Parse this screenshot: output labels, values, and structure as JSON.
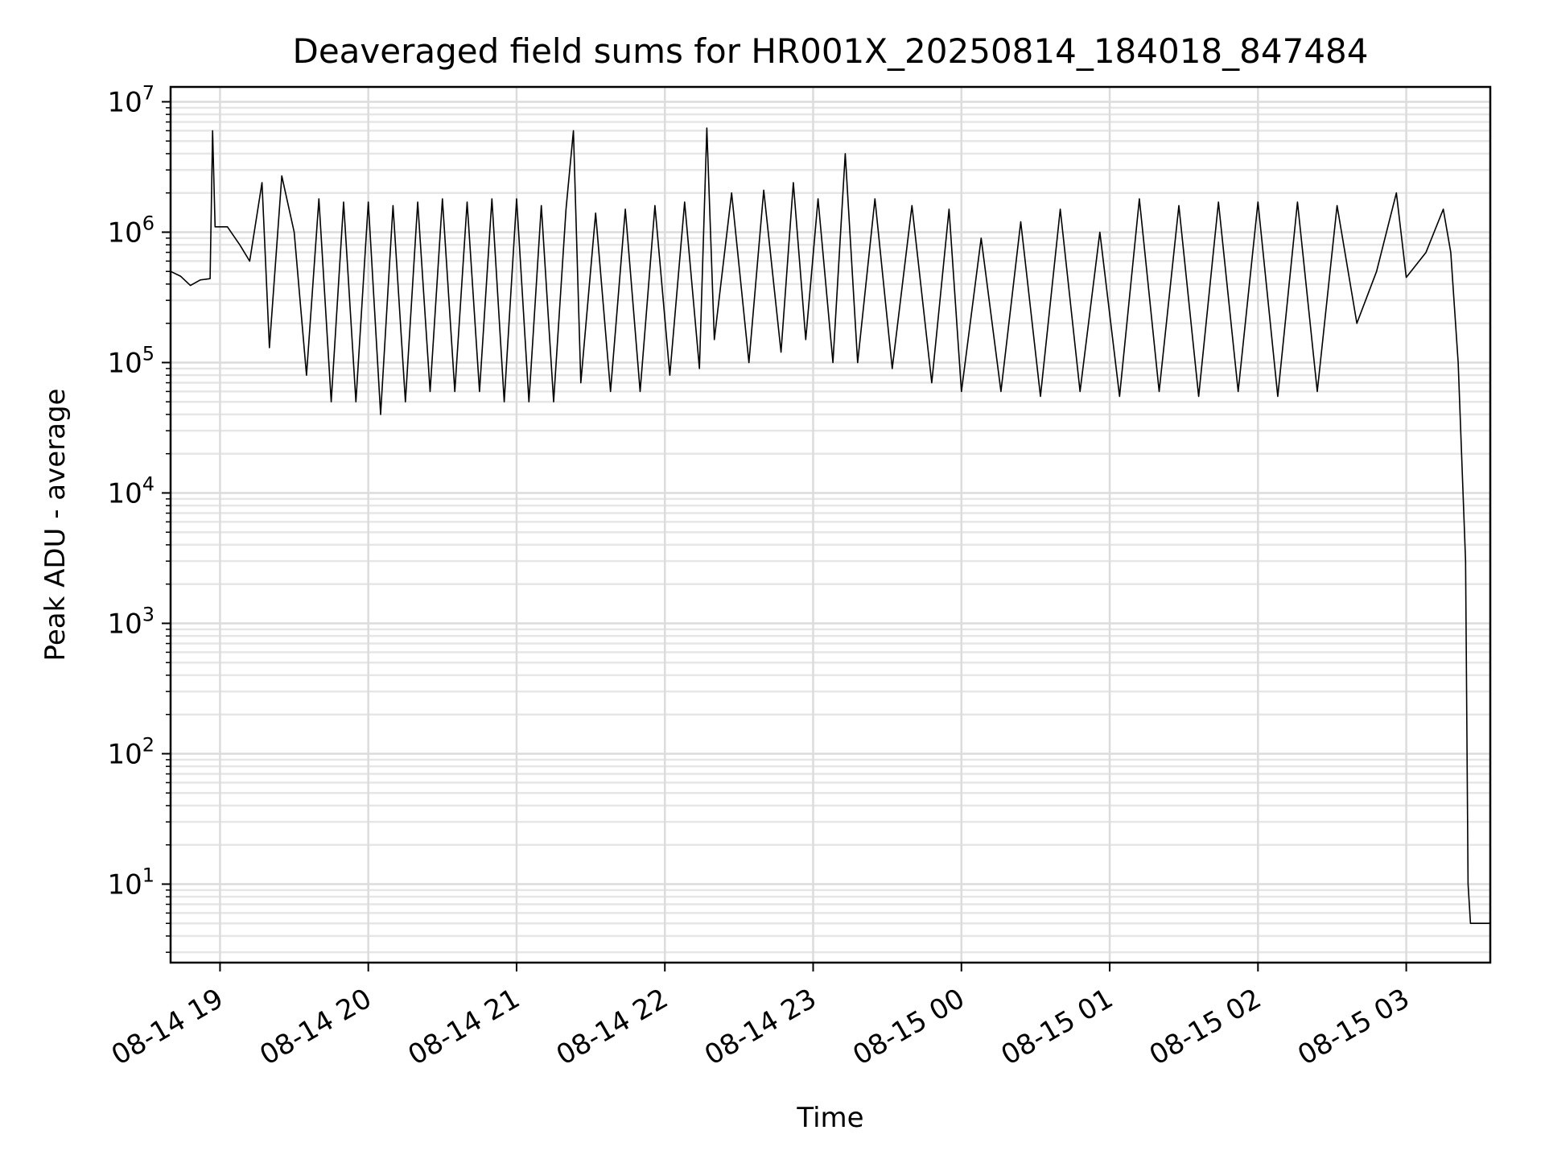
{
  "chart_data": {
    "type": "line",
    "title": "Deaveraged field sums for HR001X_20250814_184018_847484",
    "xlabel": "Time",
    "ylabel": "Peak ADU - average",
    "y_scale": "log",
    "ylim": [
      2.5,
      13000000
    ],
    "xlim": [
      "2025-08-14 18:40",
      "2025-08-15 03:34"
    ],
    "grid": true,
    "legend": "none",
    "line_color": "#000000",
    "x_ticks": [
      {
        "t": "2025-08-14 19:00",
        "label": "08-14 19"
      },
      {
        "t": "2025-08-14 20:00",
        "label": "08-14 20"
      },
      {
        "t": "2025-08-14 21:00",
        "label": "08-14 21"
      },
      {
        "t": "2025-08-14 22:00",
        "label": "08-14 22"
      },
      {
        "t": "2025-08-14 23:00",
        "label": "08-14 23"
      },
      {
        "t": "2025-08-15 00:00",
        "label": "08-15 00"
      },
      {
        "t": "2025-08-15 01:00",
        "label": "08-15 01"
      },
      {
        "t": "2025-08-15 02:00",
        "label": "08-15 02"
      },
      {
        "t": "2025-08-15 03:00",
        "label": "08-15 03"
      }
    ],
    "y_ticks": [
      {
        "value": 10,
        "base": "10",
        "exp": "1"
      },
      {
        "value": 100,
        "base": "10",
        "exp": "2"
      },
      {
        "value": 1000,
        "base": "10",
        "exp": "3"
      },
      {
        "value": 10000,
        "base": "10",
        "exp": "4"
      },
      {
        "value": 100000,
        "base": "10",
        "exp": "5"
      },
      {
        "value": 1000000,
        "base": "10",
        "exp": "6"
      },
      {
        "value": 10000000,
        "base": "10",
        "exp": "7"
      }
    ],
    "series": [
      {
        "points": [
          [
            "2025-08-14 18:40",
            500000
          ],
          [
            "2025-08-14 18:44",
            460000
          ],
          [
            "2025-08-14 18:48",
            390000
          ],
          [
            "2025-08-14 18:52",
            430000
          ],
          [
            "2025-08-14 18:56",
            440000
          ],
          [
            "2025-08-14 18:57",
            6000000
          ],
          [
            "2025-08-14 18:58",
            1100000
          ],
          [
            "2025-08-14 19:03",
            1100000
          ],
          [
            "2025-08-14 19:08",
            800000
          ],
          [
            "2025-08-14 19:12",
            600000
          ],
          [
            "2025-08-14 19:17",
            2400000
          ],
          [
            "2025-08-14 19:20",
            130000
          ],
          [
            "2025-08-14 19:25",
            2700000
          ],
          [
            "2025-08-14 19:30",
            1000000
          ],
          [
            "2025-08-14 19:35",
            80000
          ],
          [
            "2025-08-14 19:40",
            1800000
          ],
          [
            "2025-08-14 19:45",
            50000
          ],
          [
            "2025-08-14 19:50",
            1700000
          ],
          [
            "2025-08-14 19:55",
            50000
          ],
          [
            "2025-08-14 20:00",
            1700000
          ],
          [
            "2025-08-14 20:05",
            40000
          ],
          [
            "2025-08-14 20:10",
            1600000
          ],
          [
            "2025-08-14 20:15",
            50000
          ],
          [
            "2025-08-14 20:20",
            1700000
          ],
          [
            "2025-08-14 20:25",
            60000
          ],
          [
            "2025-08-14 20:30",
            1800000
          ],
          [
            "2025-08-14 20:35",
            60000
          ],
          [
            "2025-08-14 20:40",
            1700000
          ],
          [
            "2025-08-14 20:45",
            60000
          ],
          [
            "2025-08-14 20:50",
            1800000
          ],
          [
            "2025-08-14 20:55",
            50000
          ],
          [
            "2025-08-14 21:00",
            1800000
          ],
          [
            "2025-08-14 21:05",
            50000
          ],
          [
            "2025-08-14 21:10",
            1600000
          ],
          [
            "2025-08-14 21:15",
            50000
          ],
          [
            "2025-08-14 21:20",
            1500000
          ],
          [
            "2025-08-14 21:23",
            6000000
          ],
          [
            "2025-08-14 21:26",
            70000
          ],
          [
            "2025-08-14 21:32",
            1400000
          ],
          [
            "2025-08-14 21:38",
            60000
          ],
          [
            "2025-08-14 21:44",
            1500000
          ],
          [
            "2025-08-14 21:50",
            60000
          ],
          [
            "2025-08-14 21:56",
            1600000
          ],
          [
            "2025-08-14 22:02",
            80000
          ],
          [
            "2025-08-14 22:08",
            1700000
          ],
          [
            "2025-08-14 22:14",
            90000
          ],
          [
            "2025-08-14 22:17",
            6300000
          ],
          [
            "2025-08-14 22:20",
            150000
          ],
          [
            "2025-08-14 22:27",
            2000000
          ],
          [
            "2025-08-14 22:34",
            100000
          ],
          [
            "2025-08-14 22:40",
            2100000
          ],
          [
            "2025-08-14 22:47",
            120000
          ],
          [
            "2025-08-14 22:52",
            2400000
          ],
          [
            "2025-08-14 22:57",
            150000
          ],
          [
            "2025-08-14 23:02",
            1800000
          ],
          [
            "2025-08-14 23:08",
            100000
          ],
          [
            "2025-08-14 23:13",
            4000000
          ],
          [
            "2025-08-14 23:18",
            100000
          ],
          [
            "2025-08-14 23:25",
            1800000
          ],
          [
            "2025-08-14 23:32",
            90000
          ],
          [
            "2025-08-14 23:40",
            1600000
          ],
          [
            "2025-08-14 23:48",
            70000
          ],
          [
            "2025-08-14 23:55",
            1500000
          ],
          [
            "2025-08-15 00:00",
            60000
          ],
          [
            "2025-08-15 00:08",
            900000
          ],
          [
            "2025-08-15 00:16",
            60000
          ],
          [
            "2025-08-15 00:24",
            1200000
          ],
          [
            "2025-08-15 00:32",
            55000
          ],
          [
            "2025-08-15 00:40",
            1500000
          ],
          [
            "2025-08-15 00:48",
            60000
          ],
          [
            "2025-08-15 00:56",
            1000000
          ],
          [
            "2025-08-15 01:04",
            55000
          ],
          [
            "2025-08-15 01:12",
            1800000
          ],
          [
            "2025-08-15 01:20",
            60000
          ],
          [
            "2025-08-15 01:28",
            1600000
          ],
          [
            "2025-08-15 01:36",
            55000
          ],
          [
            "2025-08-15 01:44",
            1700000
          ],
          [
            "2025-08-15 01:52",
            60000
          ],
          [
            "2025-08-15 02:00",
            1700000
          ],
          [
            "2025-08-15 02:08",
            55000
          ],
          [
            "2025-08-15 02:16",
            1700000
          ],
          [
            "2025-08-15 02:24",
            60000
          ],
          [
            "2025-08-15 02:32",
            1600000
          ],
          [
            "2025-08-15 02:40",
            200000
          ],
          [
            "2025-08-15 02:48",
            500000
          ],
          [
            "2025-08-15 02:56",
            2000000
          ],
          [
            "2025-08-15 03:00",
            450000
          ],
          [
            "2025-08-15 03:08",
            700000
          ],
          [
            "2025-08-15 03:15",
            1500000
          ],
          [
            "2025-08-15 03:18",
            700000
          ],
          [
            "2025-08-15 03:21",
            100000
          ],
          [
            "2025-08-15 03:24",
            3000
          ],
          [
            "2025-08-15 03:25",
            10
          ],
          [
            "2025-08-15 03:26",
            5
          ],
          [
            "2025-08-15 03:34",
            5
          ]
        ]
      }
    ]
  }
}
